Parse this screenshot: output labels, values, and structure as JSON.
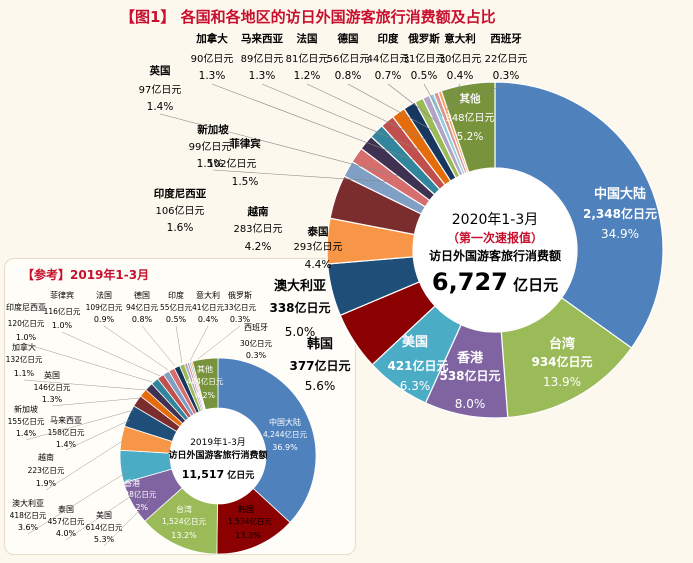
{
  "title": "【图1】 各国和各地区的访日外国游客旅行消费额及占比",
  "reference_title": "【参考】2019年1-3月",
  "chart_data": [
    {
      "type": "pie",
      "period": "2020年1-3月",
      "note": "（第一次速报值）",
      "center_label": "访日外国游客旅行消费额",
      "total_value": "6,727",
      "total_unit": "亿日元",
      "slice_unit": "亿日元",
      "slices": [
        {
          "name": "中国大陆",
          "value": 2348,
          "value_text": "2,348",
          "pct": "34.9%",
          "color": "#4f81bd"
        },
        {
          "name": "台湾",
          "value": 934,
          "value_text": "934",
          "pct": "13.9%",
          "color": "#9bbb59"
        },
        {
          "name": "香港",
          "value": 538,
          "value_text": "538",
          "pct": "8.0%",
          "color": "#8064a2"
        },
        {
          "name": "美国",
          "value": 421,
          "value_text": "421",
          "pct": "6.3%",
          "color": "#4bacc6"
        },
        {
          "name": "韩国",
          "value": 377,
          "value_text": "377",
          "pct": "5.6%",
          "color": "#8b0000"
        },
        {
          "name": "澳大利亚",
          "value": 338,
          "value_text": "338",
          "pct": "5.0%",
          "color": "#1f4e79"
        },
        {
          "name": "泰国",
          "value": 293,
          "value_text": "293",
          "pct": "4.4%",
          "color": "#f79646"
        },
        {
          "name": "越南",
          "value": 283,
          "value_text": "283",
          "pct": "4.2%",
          "color": "#7b2c2c"
        },
        {
          "name": "印度尼西亚",
          "value": 106,
          "value_text": "106",
          "pct": "1.6%",
          "color": "#7f9fc4"
        },
        {
          "name": "菲律宾",
          "value": 102,
          "value_text": "102",
          "pct": "1.5%",
          "color": "#d66e6e"
        },
        {
          "name": "新加坡",
          "value": 99,
          "value_text": "99",
          "pct": "1.5%",
          "color": "#3f3151"
        },
        {
          "name": "英国",
          "value": 97,
          "value_text": "97",
          "pct": "1.4%",
          "color": "#31859c"
        },
        {
          "name": "加拿大",
          "value": 90,
          "value_text": "90",
          "pct": "1.3%",
          "color": "#c0504d"
        },
        {
          "name": "马来西亚",
          "value": 89,
          "value_text": "89",
          "pct": "1.3%",
          "color": "#e46c0a"
        },
        {
          "name": "法国",
          "value": 81,
          "value_text": "81",
          "pct": "1.2%",
          "color": "#17375e"
        },
        {
          "name": "德国",
          "value": 56,
          "value_text": "56",
          "pct": "0.8%",
          "color": "#9bbb59"
        },
        {
          "name": "印度",
          "value": 44,
          "value_text": "44",
          "pct": "0.7%",
          "color": "#b3a2c7"
        },
        {
          "name": "俄罗斯",
          "value": 31,
          "value_text": "31",
          "pct": "0.5%",
          "color": "#93cddd"
        },
        {
          "name": "意大利",
          "value": 30,
          "value_text": "30",
          "pct": "0.4%",
          "color": "#d99694"
        },
        {
          "name": "西班牙",
          "value": 22,
          "value_text": "22",
          "pct": "0.3%",
          "color": "#f4a460"
        },
        {
          "name": "其他",
          "value": 348,
          "value_text": "348",
          "pct": "5.2%",
          "color": "#77933c"
        }
      ]
    },
    {
      "type": "pie",
      "period": "2019年1-3月",
      "center_label": "访日外国游客旅行消费额",
      "total_value": "11,517",
      "total_unit": "亿日元",
      "slice_unit": "亿日元",
      "slices": [
        {
          "name": "中国大陆",
          "value": 4244,
          "value_text": "4,244",
          "pct": "36.9%",
          "color": "#4f81bd"
        },
        {
          "name": "韩国",
          "value": 1534,
          "value_text": "1,534",
          "pct": "13.3%",
          "color": "#8b0000"
        },
        {
          "name": "台湾",
          "value": 1524,
          "value_text": "1,524",
          "pct": "13.2%",
          "color": "#9bbb59"
        },
        {
          "name": "香港",
          "value": 828,
          "value_text": "828",
          "pct": "7.2%",
          "color": "#8064a2"
        },
        {
          "name": "美国",
          "value": 614,
          "value_text": "614",
          "pct": "5.3%",
          "color": "#4bacc6"
        },
        {
          "name": "泰国",
          "value": 457,
          "value_text": "457",
          "pct": "4.0%",
          "color": "#f79646"
        },
        {
          "name": "澳大利亚",
          "value": 418,
          "value_text": "418",
          "pct": "3.6%",
          "color": "#1f4e79"
        },
        {
          "name": "越南",
          "value": 223,
          "value_text": "223",
          "pct": "1.9%",
          "color": "#7b2c2c"
        },
        {
          "name": "马来西亚",
          "value": 158,
          "value_text": "158",
          "pct": "1.4%",
          "color": "#e46c0a"
        },
        {
          "name": "新加坡",
          "value": 155,
          "value_text": "155",
          "pct": "1.4%",
          "color": "#3f3151"
        },
        {
          "name": "英国",
          "value": 146,
          "value_text": "146",
          "pct": "1.3%",
          "color": "#31859c"
        },
        {
          "name": "加拿大",
          "value": 132,
          "value_text": "132",
          "pct": "1.1%",
          "color": "#c0504d"
        },
        {
          "name": "印度尼西亚",
          "value": 120,
          "value_text": "120",
          "pct": "1.0%",
          "color": "#7f9fc4"
        },
        {
          "name": "菲律宾",
          "value": 116,
          "value_text": "116",
          "pct": "1.0%",
          "color": "#d66e6e"
        },
        {
          "name": "法国",
          "value": 109,
          "value_text": "109",
          "pct": "0.9%",
          "color": "#17375e"
        },
        {
          "name": "德国",
          "value": 94,
          "value_text": "94",
          "pct": "0.8%",
          "color": "#9bbb59"
        },
        {
          "name": "印度",
          "value": 55,
          "value_text": "55",
          "pct": "0.5%",
          "color": "#b3a2c7"
        },
        {
          "name": "意大利",
          "value": 41,
          "value_text": "41",
          "pct": "0.4%",
          "color": "#d99694"
        },
        {
          "name": "俄罗斯",
          "value": 33,
          "value_text": "33",
          "pct": "0.3%",
          "color": "#93cddd"
        },
        {
          "name": "西班牙",
          "value": 30,
          "value_text": "30",
          "pct": "0.3%",
          "color": "#f4a460"
        },
        {
          "name": "其他",
          "value": 484,
          "value_text": "484",
          "pct": "4.2%",
          "color": "#77933c"
        }
      ]
    }
  ]
}
